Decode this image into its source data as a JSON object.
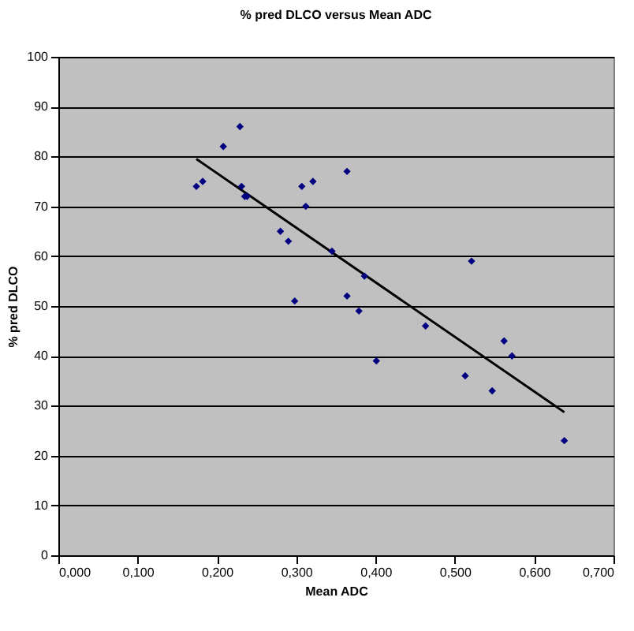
{
  "chart_data": {
    "type": "scatter",
    "title": "% pred DLCO versus Mean ADC",
    "xlabel": "Mean ADC",
    "ylabel": "% pred DLCO",
    "xlim": [
      0,
      0.7
    ],
    "xticks": [
      {
        "value": 0,
        "label": "0,000"
      },
      {
        "value": 0.1,
        "label": "0,100"
      },
      {
        "value": 0.2,
        "label": "0,200"
      },
      {
        "value": 0.3,
        "label": "0,300"
      },
      {
        "value": 0.4,
        "label": "0,400"
      },
      {
        "value": 0.5,
        "label": "0,500"
      },
      {
        "value": 0.6,
        "label": "0,600"
      },
      {
        "value": 0.7,
        "label": "0,700"
      }
    ],
    "ylim": [
      0,
      100
    ],
    "yticks": [
      0,
      10,
      20,
      30,
      40,
      50,
      60,
      70,
      80,
      90,
      100
    ],
    "grid": "y",
    "marker": "diamond",
    "series": [
      {
        "color": "#000080",
        "x": [
          0.174,
          0.182,
          0.208,
          0.229,
          0.231,
          0.235,
          0.238,
          0.307,
          0.321,
          0.312,
          0.364,
          0.28,
          0.29,
          0.345,
          0.386,
          0.298,
          0.364,
          0.379,
          0.463,
          0.521,
          0.401,
          0.562,
          0.572,
          0.513,
          0.547,
          0.638
        ],
        "values": [
          74,
          75,
          82,
          86,
          74,
          72,
          72,
          74,
          75,
          70,
          77,
          65,
          63,
          61,
          56,
          51,
          52,
          49,
          46,
          59,
          39,
          43,
          40,
          36,
          33,
          23
        ]
      },
      {
        "type": "line",
        "marker": "none",
        "color": "#000000",
        "x": [
          0.174,
          0.638
        ],
        "values": [
          79.5,
          28.7
        ]
      }
    ]
  }
}
